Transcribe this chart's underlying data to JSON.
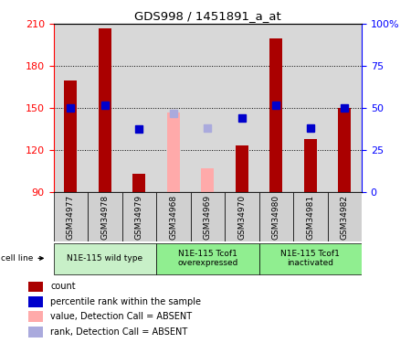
{
  "title": "GDS998 / 1451891_a_at",
  "samples": [
    "GSM34977",
    "GSM34978",
    "GSM34979",
    "GSM34968",
    "GSM34969",
    "GSM34970",
    "GSM34980",
    "GSM34981",
    "GSM34982"
  ],
  "count_values": [
    170,
    207,
    103,
    null,
    null,
    123,
    200,
    128,
    150
  ],
  "count_absent_values": [
    null,
    null,
    null,
    147,
    107,
    null,
    null,
    null,
    null
  ],
  "percentile_values": [
    150,
    152,
    135,
    null,
    null,
    143,
    152,
    136,
    150
  ],
  "percentile_absent_values": [
    null,
    null,
    null,
    146,
    136,
    null,
    null,
    null,
    null
  ],
  "ylim_left": [
    90,
    210
  ],
  "ylim_right": [
    0,
    100
  ],
  "yticks_left": [
    90,
    120,
    150,
    180,
    210
  ],
  "yticks_right": [
    0,
    25,
    50,
    75,
    100
  ],
  "ytick_labels_right": [
    "0",
    "25",
    "50",
    "75",
    "100%"
  ],
  "grid_lines": [
    120,
    150,
    180
  ],
  "bar_color": "#aa0000",
  "bar_absent_color": "#ffaaaa",
  "marker_color": "#0000cc",
  "marker_absent_color": "#aaaadd",
  "bar_width": 0.38,
  "marker_size": 6,
  "groups": [
    {
      "label": "N1E-115 wild type",
      "start": 0,
      "end": 3,
      "color": "#c8f0c8"
    },
    {
      "label": "N1E-115 Tcof1\noverexpressed",
      "start": 3,
      "end": 6,
      "color": "#90ee90"
    },
    {
      "label": "N1E-115 Tcof1\ninactivated",
      "start": 6,
      "end": 9,
      "color": "#90ee90"
    }
  ],
  "legend_items": [
    {
      "color": "#aa0000",
      "label": "count"
    },
    {
      "color": "#0000cc",
      "label": "percentile rank within the sample"
    },
    {
      "color": "#ffaaaa",
      "label": "value, Detection Call = ABSENT"
    },
    {
      "color": "#aaaadd",
      "label": "rank, Detection Call = ABSENT"
    }
  ],
  "col_bg_color": "#d8d8d8",
  "sample_box_color": "#d0d0d0"
}
